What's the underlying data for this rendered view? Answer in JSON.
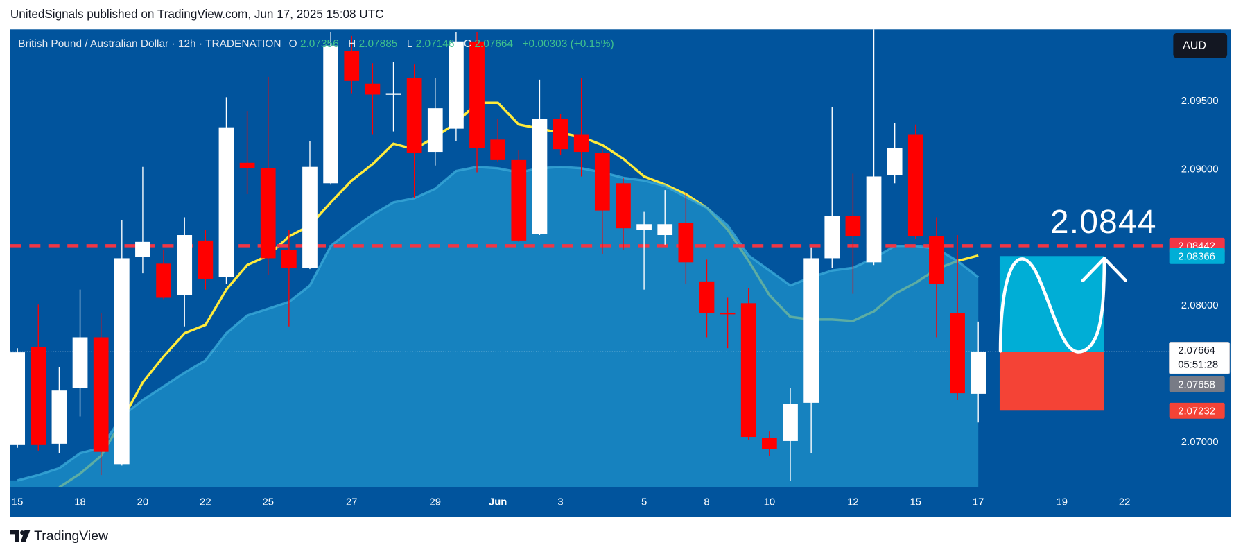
{
  "header": "UnitedSignals published on TradingView.com, Jun 17, 2025 15:08 UTC",
  "footer": "TradingView",
  "chart_data": {
    "type": "candlestick",
    "symbol": "British Pound / Australian Dollar · 12h · TRADENATION",
    "legend_labels": {
      "open": "O",
      "high": "H",
      "low": "L",
      "close": "C"
    },
    "change_label": "+0.00303 (+0.15%)",
    "currency": "AUD",
    "categories": [
      "15",
      null,
      null,
      "18",
      null,
      null,
      "20",
      null,
      null,
      "22",
      null,
      null,
      "25",
      null,
      null,
      null,
      "27",
      null,
      null,
      null,
      "29",
      null,
      null,
      "Jun",
      null,
      null,
      "3",
      null,
      null,
      null,
      "5",
      null,
      null,
      "8",
      null,
      null,
      "10",
      null,
      null,
      null,
      "12",
      null,
      null,
      "15",
      null,
      null,
      "17",
      null,
      null,
      null,
      "19",
      null,
      null,
      "22"
    ],
    "up_color": "#ffffff",
    "down_color": "#ff0000",
    "candles": [
      {
        "open": 2.0698,
        "high": 2.0769,
        "low": 2.0696,
        "close": 2.0766
      },
      {
        "open": 2.077,
        "high": 2.0801,
        "low": 2.0694,
        "close": 2.0698
      },
      {
        "open": 2.0699,
        "high": 2.0755,
        "low": 2.0692,
        "close": 2.0738
      },
      {
        "open": 2.074,
        "high": 2.0812,
        "low": 2.0719,
        "close": 2.0777
      },
      {
        "open": 2.0777,
        "high": 2.0795,
        "low": 2.0676,
        "close": 2.0693
      },
      {
        "open": 2.0684,
        "high": 2.0863,
        "low": 2.0683,
        "close": 2.0835
      },
      {
        "open": 2.0836,
        "high": 2.0902,
        "low": 2.0824,
        "close": 2.0847
      },
      {
        "open": 2.0831,
        "high": 2.0841,
        "low": 2.0805,
        "close": 2.0806
      },
      {
        "open": 2.0808,
        "high": 2.0865,
        "low": 2.0785,
        "close": 2.0852
      },
      {
        "open": 2.0848,
        "high": 2.0856,
        "low": 2.0812,
        "close": 2.082
      },
      {
        "open": 2.0821,
        "high": 2.0953,
        "low": 2.0816,
        "close": 2.0931
      },
      {
        "open": 2.0905,
        "high": 2.0943,
        "low": 2.0882,
        "close": 2.0901
      },
      {
        "open": 2.0901,
        "high": 2.0968,
        "low": 2.0823,
        "close": 2.0835
      },
      {
        "open": 2.0841,
        "high": 2.0856,
        "low": 2.0785,
        "close": 2.0828
      },
      {
        "open": 2.0828,
        "high": 2.0921,
        "low": 2.0827,
        "close": 2.0902
      },
      {
        "open": 2.089,
        "high": 2.1001,
        "low": 2.0889,
        "close": 2.0991
      },
      {
        "open": 2.0987,
        "high": 2.0998,
        "low": 2.0956,
        "close": 2.0965
      },
      {
        "open": 2.0963,
        "high": 2.0978,
        "low": 2.0926,
        "close": 2.0955
      },
      {
        "open": 2.0955,
        "high": 2.0979,
        "low": 2.0928,
        "close": 2.0956
      },
      {
        "open": 2.0967,
        "high": 2.0977,
        "low": 2.0879,
        "close": 2.0912
      },
      {
        "open": 2.0913,
        "high": 2.0967,
        "low": 2.0903,
        "close": 2.0945
      },
      {
        "open": 2.093,
        "high": 2.1001,
        "low": 2.0921,
        "close": 2.0994
      },
      {
        "open": 2.0994,
        "high": 2.1001,
        "low": 2.0898,
        "close": 2.0916
      },
      {
        "open": 2.0922,
        "high": 2.0937,
        "low": 2.0906,
        "close": 2.0907
      },
      {
        "open": 2.0907,
        "high": 2.0914,
        "low": 2.0847,
        "close": 2.0848
      },
      {
        "open": 2.0853,
        "high": 2.0966,
        "low": 2.0852,
        "close": 2.0937
      },
      {
        "open": 2.0937,
        "high": 2.0941,
        "low": 2.0911,
        "close": 2.0915
      },
      {
        "open": 2.0926,
        "high": 2.0967,
        "low": 2.0895,
        "close": 2.0913
      },
      {
        "open": 2.0912,
        "high": 2.0915,
        "low": 2.0838,
        "close": 2.087
      },
      {
        "open": 2.089,
        "high": 2.0894,
        "low": 2.0841,
        "close": 2.0857
      },
      {
        "open": 2.0856,
        "high": 2.0869,
        "low": 2.0812,
        "close": 2.086
      },
      {
        "open": 2.0852,
        "high": 2.0885,
        "low": 2.0845,
        "close": 2.086
      },
      {
        "open": 2.0861,
        "high": 2.0883,
        "low": 2.0816,
        "close": 2.0832
      },
      {
        "open": 2.0818,
        "high": 2.0834,
        "low": 2.0777,
        "close": 2.0795
      },
      {
        "open": 2.0795,
        "high": 2.0806,
        "low": 2.0769,
        "close": 2.0794
      },
      {
        "open": 2.0802,
        "high": 2.0813,
        "low": 2.0702,
        "close": 2.0704
      },
      {
        "open": 2.0703,
        "high": 2.0708,
        "low": 2.069,
        "close": 2.0695
      },
      {
        "open": 2.0701,
        "high": 2.074,
        "low": 2.0672,
        "close": 2.0728
      },
      {
        "open": 2.0729,
        "high": 2.0843,
        "low": 2.0692,
        "close": 2.0835
      },
      {
        "open": 2.0835,
        "high": 2.0946,
        "low": 2.0828,
        "close": 2.0866
      },
      {
        "open": 2.0866,
        "high": 2.0897,
        "low": 2.0809,
        "close": 2.0851
      },
      {
        "open": 2.0832,
        "high": 2.1003,
        "low": 2.083,
        "close": 2.0895
      },
      {
        "open": 2.0896,
        "high": 2.0934,
        "low": 2.089,
        "close": 2.0916
      },
      {
        "open": 2.0926,
        "high": 2.0933,
        "low": 2.0849,
        "close": 2.0851
      },
      {
        "open": 2.0851,
        "high": 2.0865,
        "low": 2.0777,
        "close": 2.0816
      },
      {
        "open": 2.0795,
        "high": 2.0852,
        "low": 2.0731,
        "close": 2.0736
      },
      {
        "open": 2.07356,
        "high": 2.07885,
        "low": 2.07146,
        "close": 2.07664
      }
    ],
    "ma_fast": {
      "color": "#ffeb3b",
      "values": [
        null,
        null,
        2.0667,
        2.0677,
        2.069,
        2.0716,
        2.0744,
        2.0763,
        2.078,
        2.0786,
        2.0812,
        2.083,
        2.0837,
        2.0851,
        2.0859,
        2.0876,
        2.0892,
        2.0904,
        2.0919,
        2.0915,
        2.0924,
        2.0934,
        2.0949,
        2.0949,
        2.0933,
        2.093,
        2.0927,
        2.0924,
        2.0918,
        2.0908,
        2.0895,
        2.0889,
        2.0882,
        2.0872,
        2.0856,
        2.0833,
        2.0808,
        2.0792,
        2.079,
        2.079,
        2.0789,
        2.0796,
        2.0809,
        2.0817,
        2.0827,
        2.0833,
        2.0837
      ]
    },
    "ma_slow": {
      "color": "#1e94cc",
      "values": [
        2.0672,
        2.0676,
        2.0681,
        2.0692,
        2.0696,
        2.0719,
        2.0731,
        2.0741,
        2.0751,
        2.076,
        2.078,
        2.0793,
        2.0798,
        2.0803,
        2.0815,
        2.0844,
        2.0856,
        2.0867,
        2.0876,
        2.0879,
        2.0886,
        2.0899,
        2.0902,
        2.0901,
        2.0898,
        2.0901,
        2.0902,
        2.0901,
        2.0898,
        2.0894,
        2.0892,
        2.0888,
        2.088,
        2.0872,
        2.0859,
        2.0837,
        2.0826,
        2.0815,
        2.0821,
        2.0826,
        2.0828,
        2.0835,
        2.0844,
        2.0844,
        2.0842,
        2.0833,
        2.0821
      ]
    },
    "level": {
      "value": 2.08442,
      "color": "#f23645"
    },
    "level_annotation": "2.0844",
    "position": {
      "target": 2.08366,
      "stop": 2.07232,
      "target_color": "#00aed6",
      "stop_color": "#f44336"
    },
    "countdown": "05:51:28",
    "bid": 2.07658,
    "ylim": [
      2.06669,
      2.10029
    ],
    "yticks": [
      {
        "value": 2.07,
        "label": "2.07000"
      },
      {
        "value": 2.08,
        "label": "2.08000"
      },
      {
        "value": 2.09,
        "label": "2.09000"
      },
      {
        "value": 2.095,
        "label": "2.09500"
      }
    ]
  }
}
